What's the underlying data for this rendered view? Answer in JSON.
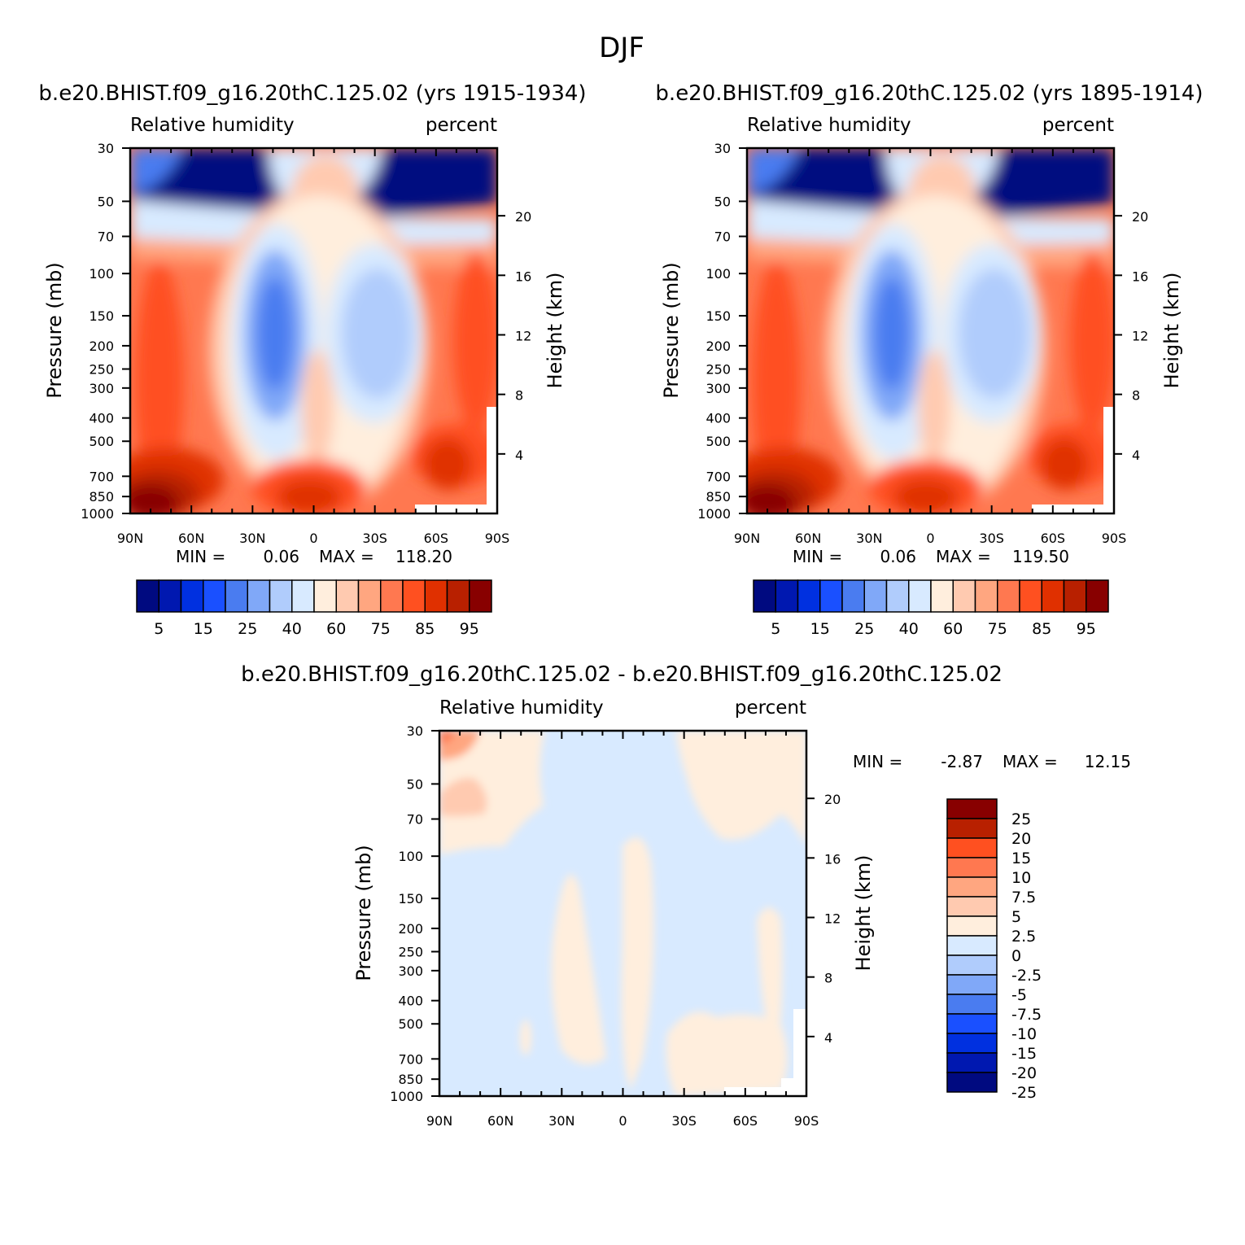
{
  "figure": {
    "title": "DJF"
  },
  "colors": {
    "abs": [
      "#000a80",
      "#0018b0",
      "#0030e0",
      "#1a50ff",
      "#4a7cf0",
      "#80a8f8",
      "#b0ccfc",
      "#d8eaff",
      "#ffeedd",
      "#ffcab0",
      "#ffa680",
      "#ff7850",
      "#ff5020",
      "#e03000",
      "#b82000",
      "#880000"
    ],
    "diff": [
      "#880000",
      "#b82000",
      "#ff5020",
      "#ff7850",
      "#ffa680",
      "#ffcab0",
      "#ffeedd",
      "#d8eaff",
      "#b0ccfc",
      "#80a8f8",
      "#4a7cf0",
      "#1a50ff",
      "#0030e0",
      "#0018b0",
      "#000a80"
    ]
  },
  "chart_data": [
    {
      "type": "heatmap",
      "case_title": "b.e20.BHIST.f09_g16.20thC.125.02 (yrs 1915-1934)",
      "left_label": "Relative humidity",
      "right_label": "percent",
      "ylabel": "Pressure (mb)",
      "ylabel_right": "Height (km)",
      "x_ticks": [
        "90N",
        "60N",
        "30N",
        "0",
        "30S",
        "60S",
        "90S"
      ],
      "pressure_ticks": [
        "30",
        "50",
        "70",
        "100",
        "150",
        "200",
        "250",
        "300",
        "400",
        "500",
        "700",
        "850",
        "1000"
      ],
      "height_ticks": [
        "20",
        "16",
        "12",
        "8",
        "4"
      ],
      "min_label": "MIN =",
      "min_value": "0.06",
      "max_label": "MAX =",
      "max_value": "118.20",
      "colorbar_labels": [
        "5",
        "15",
        "25",
        "40",
        "60",
        "75",
        "85",
        "95"
      ]
    },
    {
      "type": "heatmap",
      "case_title": "b.e20.BHIST.f09_g16.20thC.125.02 (yrs 1895-1914)",
      "left_label": "Relative humidity",
      "right_label": "percent",
      "ylabel": "Pressure (mb)",
      "ylabel_right": "Height (km)",
      "x_ticks": [
        "90N",
        "60N",
        "30N",
        "0",
        "30S",
        "60S",
        "90S"
      ],
      "pressure_ticks": [
        "30",
        "50",
        "70",
        "100",
        "150",
        "200",
        "250",
        "300",
        "400",
        "500",
        "700",
        "850",
        "1000"
      ],
      "height_ticks": [
        "20",
        "16",
        "12",
        "8",
        "4"
      ],
      "min_label": "MIN =",
      "min_value": "0.06",
      "max_label": "MAX =",
      "max_value": "119.50",
      "colorbar_labels": [
        "5",
        "15",
        "25",
        "40",
        "60",
        "75",
        "85",
        "95"
      ]
    },
    {
      "type": "heatmap",
      "case_title": "b.e20.BHIST.f09_g16.20thC.125.02 - b.e20.BHIST.f09_g16.20thC.125.02",
      "left_label": "Relative humidity",
      "right_label": "percent",
      "ylabel": "Pressure (mb)",
      "ylabel_right": "Height (km)",
      "x_ticks": [
        "90N",
        "60N",
        "30N",
        "0",
        "30S",
        "60S",
        "90S"
      ],
      "pressure_ticks": [
        "30",
        "50",
        "70",
        "100",
        "150",
        "200",
        "250",
        "300",
        "400",
        "500",
        "700",
        "850",
        "1000"
      ],
      "height_ticks": [
        "20",
        "16",
        "12",
        "8",
        "4"
      ],
      "min_label": "MIN =",
      "min_value": "-2.87",
      "max_label": "MAX =",
      "max_value": "12.15",
      "colorbar_labels": [
        "25",
        "20",
        "15",
        "10",
        "7.5",
        "5",
        "2.5",
        "0",
        "-2.5",
        "-5",
        "-7.5",
        "-10",
        "-15",
        "-20",
        "-25"
      ]
    }
  ]
}
